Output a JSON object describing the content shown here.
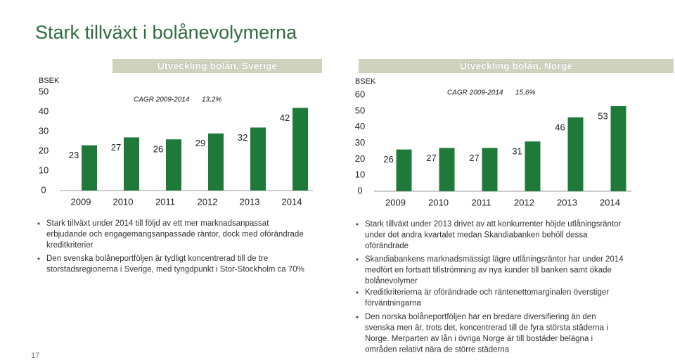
{
  "title": "Stark tillväxt i bolånevolymerna",
  "page_number": "17",
  "chart_data": [
    {
      "type": "bar",
      "title": "Utveckling bolån, Sverige",
      "unit_label": "BSEK",
      "annotation": "CAGR 2009-2014",
      "annotation_value": "13,2%",
      "categories": [
        "2009",
        "2010",
        "2011",
        "2012",
        "2013",
        "2014"
      ],
      "values": [
        23,
        27,
        26,
        29,
        32,
        42
      ],
      "color": "#1f7a3a",
      "ylim": [
        0,
        50
      ],
      "yticks": [
        0,
        10,
        20,
        30,
        40,
        50
      ]
    },
    {
      "type": "bar",
      "title": "Utveckling bolån, Norge",
      "unit_label": "BSEK",
      "annotation": "CAGR 2009-2014",
      "annotation_value": "15,6%",
      "categories": [
        "2009",
        "2010",
        "2011",
        "2012",
        "2013",
        "2014"
      ],
      "values": [
        26,
        27,
        27,
        31,
        46,
        53
      ],
      "color": "#1f7a3a",
      "ylim": [
        0,
        60
      ],
      "yticks": [
        0,
        10,
        20,
        30,
        40,
        50,
        60
      ]
    }
  ],
  "bullets_left": [
    [
      "Stark tillväxt under 2014 till följd av ett mer marknadsanpassat",
      "erbjudande och engagemangsanpassade räntor, dock med oförändrade",
      "kreditkriterier"
    ],
    [
      "Den svenska bolåneportföljen är tydligt koncentrerad till de tre",
      "storstadsregionerna i Sverige, med tyngdpunkt i Stor-Stockholm ca 70%"
    ]
  ],
  "bullets_right": [
    [
      "Stark tillväxt under 2013 drivet av att konkurrenter höjde utlåningsräntor",
      "under det andra kvartalet medan Skandiabanken behöll dessa",
      "oförändrade"
    ],
    [
      "Skandiabankens marknadsmässigt lägre utlåningsräntor har under 2014",
      "medfört en fortsatt tillströmning av nya kunder till banken samt ökade",
      "bolånevolymer"
    ],
    [
      "Kreditkriterierna är oförändrade och räntenettomarginalen överstiger",
      "förväntningarna"
    ],
    [
      "Den norska bolåneportföljen har en bredare diversifiering än den",
      "svenska men är, trots det, koncentrerad till de fyra största städerna i",
      "Norge. Merparten av lån i övriga Norge är till bostäder belägna i",
      "områden relativt nära de större städerna"
    ]
  ]
}
